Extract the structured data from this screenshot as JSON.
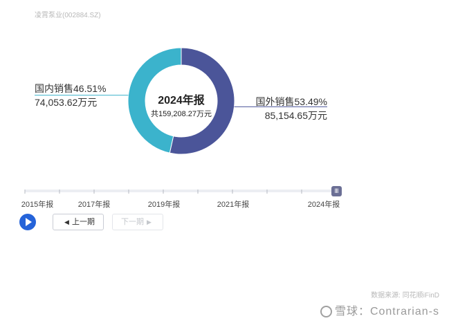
{
  "company": "凌霄泵业(002884.SZ)",
  "chart_data": {
    "type": "pie",
    "subtype": "donut",
    "period": "2024年报",
    "total_label": "共159,208.27万元",
    "series": [
      {
        "name": "国内销售",
        "percent": 46.51,
        "percent_label": "国内销售46.51%",
        "value": 74053.62,
        "value_label": "74,053.62万元",
        "color": "#3bb3cc"
      },
      {
        "name": "国外销售",
        "percent": 53.49,
        "percent_label": "国外销售53.49%",
        "value": 85154.65,
        "value_label": "85,154.65万元",
        "color": "#4b5599"
      }
    ]
  },
  "timeline": {
    "tick_labels": [
      "2015年报",
      "2017年报",
      "2019年报",
      "2021年报",
      "2024年报"
    ],
    "selected": "2024年报",
    "handle_glyph": "Ⅲ"
  },
  "controls": {
    "play_icon": "play-icon",
    "prev_label": "上一期",
    "next_label": "下一期"
  },
  "footer": {
    "source": "数据来源: 同花顺iFinD",
    "watermark": "雪球：Contrarian-s"
  }
}
